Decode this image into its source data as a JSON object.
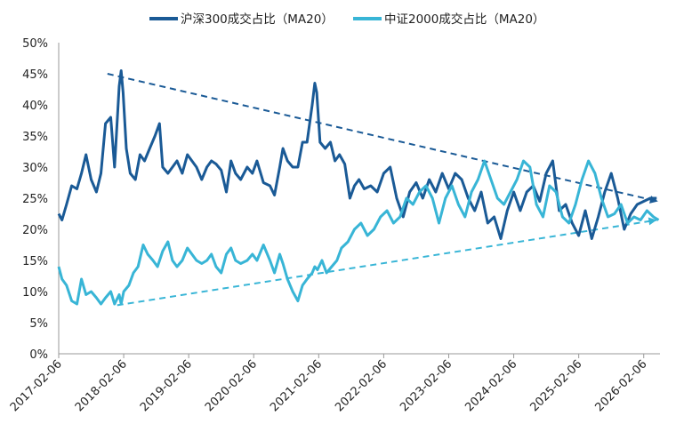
{
  "chart_data": {
    "type": "line",
    "title": "",
    "xlabel": "",
    "ylabel": "",
    "ylim": [
      0,
      50
    ],
    "y_ticks": [
      "0%",
      "5%",
      "10%",
      "15%",
      "20%",
      "25%",
      "30%",
      "35%",
      "40%",
      "45%",
      "50%"
    ],
    "x_ticks": [
      "2017-02-06",
      "2018-02-06",
      "2019-02-06",
      "2020-02-06",
      "2021-02-06",
      "2022-02-06",
      "2023-02-06",
      "2024-02-06",
      "2025-02-06",
      "2026-02-06"
    ],
    "xlim": [
      2017.1,
      2026.35
    ],
    "legend_position": "top",
    "series": [
      {
        "name": "沪深300成交占比（MA20）",
        "color": "#1a5a96",
        "style": "solid",
        "x": [
          2017.1,
          2017.15,
          2017.22,
          2017.3,
          2017.38,
          2017.45,
          2017.52,
          2017.6,
          2017.68,
          2017.75,
          2017.82,
          2017.9,
          2017.96,
          2018.03,
          2018.06,
          2018.09,
          2018.14,
          2018.2,
          2018.28,
          2018.35,
          2018.42,
          2018.5,
          2018.58,
          2018.65,
          2018.7,
          2018.78,
          2018.85,
          2018.92,
          2019.0,
          2019.08,
          2019.15,
          2019.22,
          2019.3,
          2019.38,
          2019.45,
          2019.52,
          2019.6,
          2019.68,
          2019.75,
          2019.82,
          2019.9,
          2020.0,
          2020.08,
          2020.15,
          2020.25,
          2020.35,
          2020.42,
          2020.5,
          2020.55,
          2020.62,
          2020.7,
          2020.78,
          2020.85,
          2020.92,
          2021.0,
          2021.04,
          2021.07,
          2021.12,
          2021.2,
          2021.28,
          2021.35,
          2021.42,
          2021.5,
          2021.58,
          2021.65,
          2021.72,
          2021.8,
          2021.9,
          2022.0,
          2022.1,
          2022.2,
          2022.3,
          2022.4,
          2022.5,
          2022.6,
          2022.7,
          2022.8,
          2022.9,
          2023.0,
          2023.1,
          2023.2,
          2023.3,
          2023.4,
          2023.5,
          2023.6,
          2023.7,
          2023.8,
          2023.9,
          2024.0,
          2024.1,
          2024.2,
          2024.3,
          2024.4,
          2024.5,
          2024.6,
          2024.7,
          2024.8,
          2024.9,
          2025.0,
          2025.1,
          2025.2,
          2025.3,
          2025.4,
          2025.5,
          2025.6,
          2025.7,
          2025.8,
          2025.9,
          2026.0,
          2026.1,
          2026.2,
          2026.3
        ],
        "values": [
          22.5,
          21.5,
          24,
          27,
          26.5,
          29,
          32,
          28,
          26,
          29,
          37,
          38,
          30,
          43,
          45.5,
          42,
          33,
          29,
          28,
          32,
          31,
          33,
          35,
          37,
          30,
          29,
          30,
          31,
          29,
          32,
          31,
          30,
          28,
          30,
          31,
          30.5,
          29.5,
          26,
          31,
          29,
          28,
          30,
          29,
          31,
          27.5,
          27,
          25.5,
          30,
          33,
          31,
          30,
          30,
          34,
          34,
          40,
          43.5,
          42,
          34,
          33,
          34,
          31,
          32,
          30.5,
          25,
          27,
          28,
          26.5,
          27,
          26,
          29,
          30,
          25,
          22,
          26,
          27.5,
          25,
          28,
          26,
          29,
          26.5,
          29,
          28,
          25,
          23,
          26,
          21,
          22,
          18.5,
          23,
          26,
          23,
          26,
          27,
          24.5,
          29,
          31,
          23,
          24,
          21,
          19,
          23,
          18.5,
          22,
          26,
          29,
          25,
          20,
          22.5,
          24,
          24.5,
          25,
          25
        ]
      },
      {
        "name": "中证2000成交占比（MA20）",
        "color": "#38b5d6",
        "style": "solid",
        "x": [
          2017.1,
          2017.15,
          2017.22,
          2017.3,
          2017.38,
          2017.45,
          2017.52,
          2017.6,
          2017.68,
          2017.75,
          2017.82,
          2017.9,
          2017.96,
          2018.03,
          2018.06,
          2018.1,
          2018.18,
          2018.25,
          2018.32,
          2018.4,
          2018.47,
          2018.55,
          2018.62,
          2018.7,
          2018.78,
          2018.85,
          2018.92,
          2019.0,
          2019.08,
          2019.15,
          2019.22,
          2019.3,
          2019.38,
          2019.45,
          2019.52,
          2019.6,
          2019.68,
          2019.75,
          2019.82,
          2019.9,
          2020.0,
          2020.08,
          2020.15,
          2020.25,
          2020.35,
          2020.42,
          2020.5,
          2020.55,
          2020.62,
          2020.7,
          2020.78,
          2020.85,
          2020.92,
          2021.0,
          2021.04,
          2021.08,
          2021.15,
          2021.22,
          2021.3,
          2021.38,
          2021.45,
          2021.55,
          2021.65,
          2021.75,
          2021.85,
          2021.95,
          2022.05,
          2022.15,
          2022.25,
          2022.35,
          2022.45,
          2022.55,
          2022.65,
          2022.75,
          2022.85,
          2022.95,
          2023.05,
          2023.15,
          2023.25,
          2023.35,
          2023.45,
          2023.55,
          2023.65,
          2023.75,
          2023.85,
          2023.95,
          2024.05,
          2024.15,
          2024.25,
          2024.35,
          2024.45,
          2024.55,
          2024.65,
          2024.75,
          2024.85,
          2024.95,
          2025.05,
          2025.15,
          2025.25,
          2025.35,
          2025.45,
          2025.55,
          2025.65,
          2025.75,
          2025.85,
          2025.95,
          2026.05,
          2026.15,
          2026.25,
          2026.33
        ],
        "values": [
          14,
          12,
          11,
          8.5,
          8,
          12,
          9.5,
          10,
          9,
          8,
          9,
          10,
          8,
          9.5,
          8,
          10,
          11,
          13,
          14,
          17.5,
          16,
          15,
          14,
          16.5,
          18,
          15,
          14,
          15,
          17,
          16,
          15,
          14.5,
          15,
          16,
          14,
          13,
          16,
          17,
          15,
          14.5,
          15,
          16,
          15,
          17.5,
          15,
          13,
          16,
          14.5,
          12,
          10,
          8.5,
          11,
          12,
          13,
          14,
          13.5,
          15,
          13,
          14,
          15,
          17,
          18,
          20,
          21,
          19,
          20,
          22,
          23,
          21,
          22,
          25,
          24,
          26,
          27,
          25,
          21,
          25,
          27,
          24,
          22,
          26,
          28,
          31,
          28,
          25,
          24,
          26,
          28,
          31,
          30,
          24,
          22,
          27,
          26,
          22,
          21,
          24,
          28,
          31,
          29,
          25,
          22,
          22.5,
          24,
          21,
          22,
          21.5,
          23,
          22,
          21.5
        ]
      }
    ],
    "trend_lines": [
      {
        "color": "#1a5a96",
        "style": "dashed",
        "x": [
          2017.85,
          2026.32
        ],
        "y": [
          45,
          24.5
        ]
      },
      {
        "color": "#38b5d6",
        "style": "dashed",
        "x": [
          2018.0,
          2026.3
        ],
        "y": [
          7.8,
          21.5
        ]
      }
    ]
  }
}
